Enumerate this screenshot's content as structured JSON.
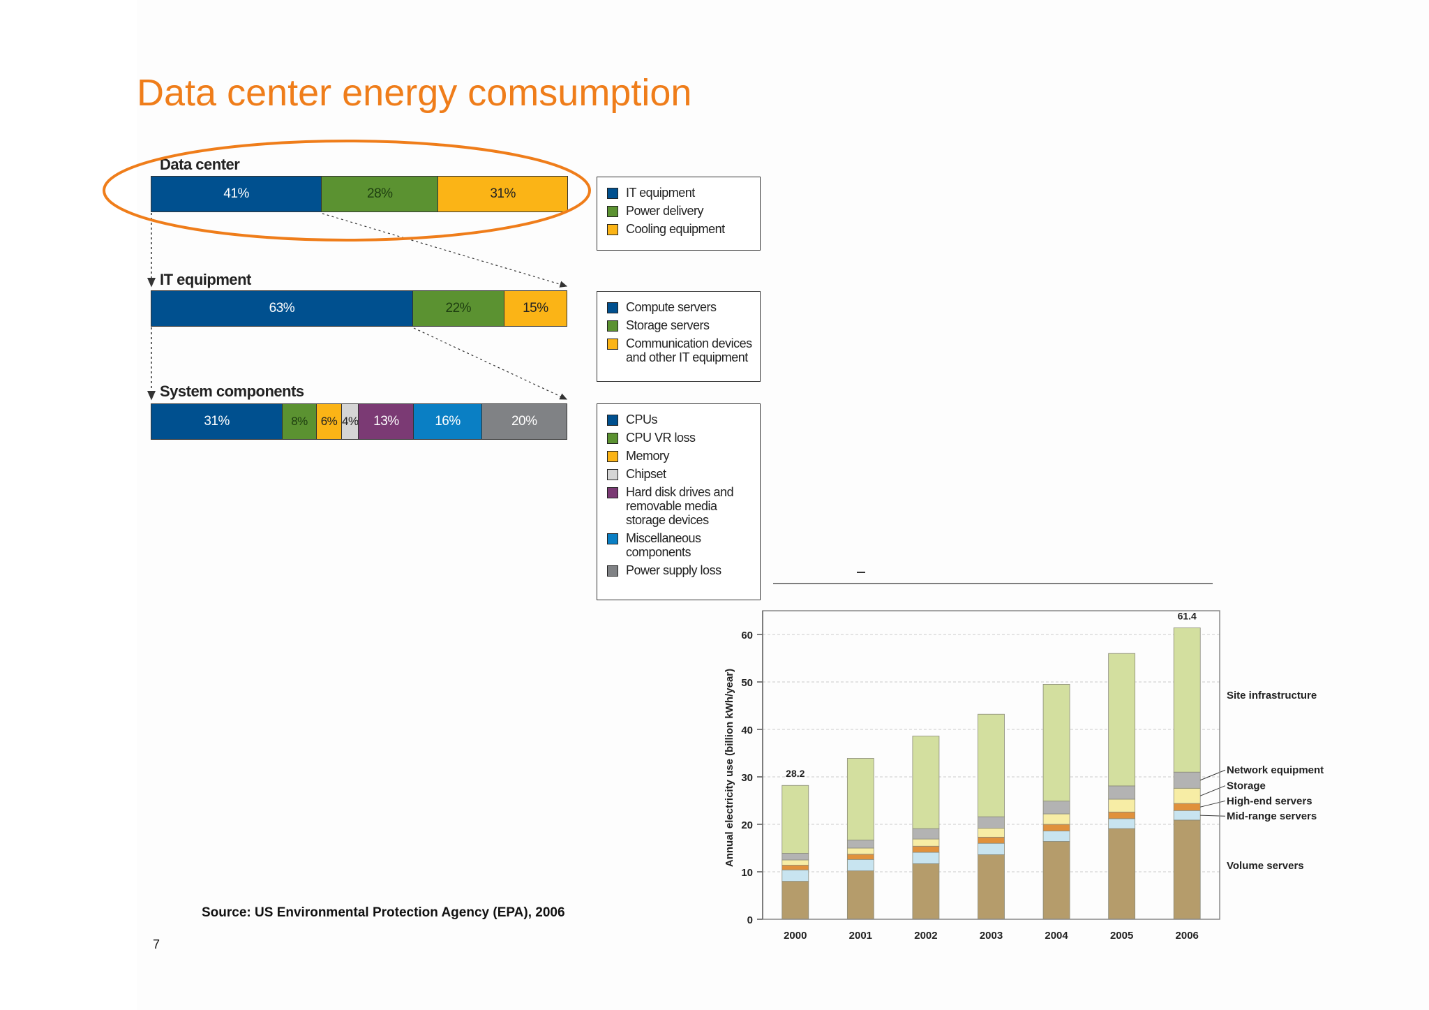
{
  "title": "Data center energy comsumption",
  "colors": {
    "title": "#ef7d1a",
    "highlight_ellipse": "#ef7d1a"
  },
  "breakdowns": [
    {
      "label": "Data center",
      "segments": [
        {
          "value": 41,
          "text": "41%",
          "color": "#00508f"
        },
        {
          "value": 28,
          "text": "28%",
          "color": "#5b9231"
        },
        {
          "value": 31,
          "text": "31%",
          "color": "#fbb416"
        }
      ],
      "legend": [
        {
          "label": "IT equipment",
          "color": "#00508f"
        },
        {
          "label": "Power delivery",
          "color": "#5b9231"
        },
        {
          "label": "Cooling equipment",
          "color": "#fbb416"
        }
      ]
    },
    {
      "label": "IT equipment",
      "segments": [
        {
          "value": 63,
          "text": "63%",
          "color": "#00508f"
        },
        {
          "value": 22,
          "text": "22%",
          "color": "#5b9231"
        },
        {
          "value": 15,
          "text": "15%",
          "color": "#fbb416"
        }
      ],
      "legend": [
        {
          "label": "Compute servers",
          "color": "#00508f"
        },
        {
          "label": "Storage servers",
          "color": "#5b9231"
        },
        {
          "label": "Communication devices\nand other IT equipment",
          "color": "#fbb416"
        }
      ]
    },
    {
      "label": "System components",
      "segments": [
        {
          "value": 31,
          "text": "31%",
          "color": "#00508f"
        },
        {
          "value": 8,
          "text": "8%",
          "color": "#5b9231"
        },
        {
          "value": 6,
          "text": "6%",
          "color": "#fbb416"
        },
        {
          "value": 4,
          "text": "4%",
          "color": "#d5d5d5"
        },
        {
          "value": 13,
          "text": "13%",
          "color": "#7b3a74"
        },
        {
          "value": 16,
          "text": "16%",
          "color": "#0a7fc4"
        },
        {
          "value": 20,
          "text": "20%",
          "color": "#808285"
        }
      ],
      "legend": [
        {
          "label": "CPUs",
          "color": "#00508f"
        },
        {
          "label": "CPU VR loss",
          "color": "#5b9231"
        },
        {
          "label": "Memory",
          "color": "#fbb416"
        },
        {
          "label": "Chipset",
          "color": "#d5d5d5"
        },
        {
          "label": "Hard disk drives and\nremovable media\nstorage devices",
          "color": "#7b3a74"
        },
        {
          "label": "Miscellaneous\ncomponents",
          "color": "#0a7fc4"
        },
        {
          "label": "Power supply loss",
          "color": "#808285"
        }
      ]
    }
  ],
  "source": "Source: US Environmental Protection Agency (EPA), 2006",
  "page_number": "7",
  "chart_data": {
    "type": "bar",
    "stacked": true,
    "title": "",
    "xlabel": "",
    "ylabel": "Annual electricity use (billion kWh/year)",
    "ylim": [
      0,
      65
    ],
    "yticks": [
      0,
      10,
      20,
      30,
      40,
      50,
      60
    ],
    "grid": true,
    "legend_position": "right, labels pointing to segments",
    "categories": [
      "2000",
      "2001",
      "2002",
      "2003",
      "2004",
      "2005",
      "2006"
    ],
    "total_labels": [
      {
        "category": "2000",
        "text": "28.2"
      },
      {
        "category": "2006",
        "text": "61.4"
      }
    ],
    "series": [
      {
        "name": "Volume servers",
        "color": "#b59c6b",
        "values": [
          8.0,
          10.2,
          11.7,
          13.6,
          16.4,
          19.1,
          20.9
        ]
      },
      {
        "name": "Mid-range servers",
        "color": "#c8e4f0",
        "values": [
          2.4,
          2.4,
          2.4,
          2.4,
          2.2,
          2.1,
          2.0
        ]
      },
      {
        "name": "High-end servers",
        "color": "#e0913c",
        "values": [
          1.0,
          1.1,
          1.3,
          1.3,
          1.4,
          1.4,
          1.5
        ]
      },
      {
        "name": "Storage",
        "color": "#f7eda5",
        "values": [
          1.1,
          1.3,
          1.5,
          1.9,
          2.2,
          2.7,
          3.2
        ]
      },
      {
        "name": "Network equipment",
        "color": "#b3b3b3",
        "values": [
          1.4,
          1.7,
          2.2,
          2.4,
          2.7,
          2.8,
          3.4
        ]
      },
      {
        "name": "Site infrastructure",
        "color": "#d3df9f",
        "values": [
          14.3,
          17.2,
          19.5,
          21.6,
          24.6,
          27.9,
          30.4
        ]
      }
    ]
  }
}
